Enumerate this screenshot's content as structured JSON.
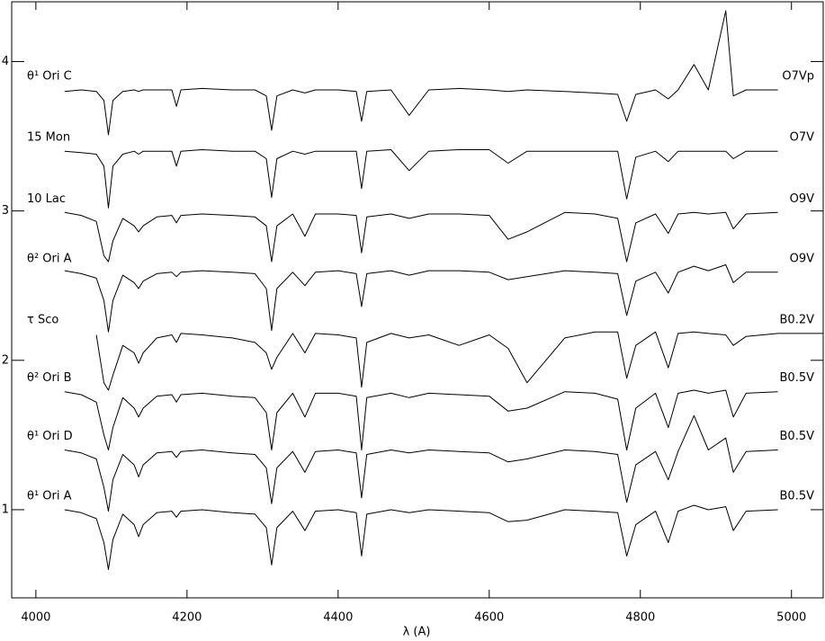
{
  "chart_data": {
    "type": "line",
    "x_label": "λ (A)",
    "xlim": [
      3968,
      5042
    ],
    "ylim": [
      0.41,
      4.4
    ],
    "xticks": [
      4000,
      4200,
      4400,
      4600,
      4800,
      5000
    ],
    "yticks": [
      1,
      2,
      3,
      4
    ],
    "color": "#000000",
    "x": [
      4038,
      4060,
      4080,
      4090,
      4096,
      4102,
      4115,
      4130,
      4136,
      4142,
      4160,
      4180,
      4186,
      4192,
      4220,
      4260,
      4290,
      4305,
      4312,
      4319,
      4340,
      4356,
      4370,
      4400,
      4424,
      4431,
      4438,
      4470,
      4494,
      4520,
      4560,
      4600,
      4625,
      4650,
      4700,
      4740,
      4770,
      4782,
      4794,
      4820,
      4837,
      4850,
      4871,
      4890,
      4913,
      4923,
      4940,
      4982,
      5042
    ],
    "series": [
      {
        "name": "θ¹ Ori C",
        "sptype": "O7Vp",
        "values": [
          3.8,
          3.81,
          3.8,
          3.74,
          3.51,
          3.74,
          3.8,
          3.81,
          3.8,
          3.81,
          3.81,
          3.81,
          3.7,
          3.81,
          3.82,
          3.81,
          3.81,
          3.77,
          3.54,
          3.77,
          3.81,
          3.79,
          3.81,
          3.81,
          3.8,
          3.6,
          3.8,
          3.81,
          3.64,
          3.81,
          3.82,
          3.81,
          3.8,
          3.81,
          3.8,
          3.79,
          3.78,
          3.6,
          3.78,
          3.81,
          3.75,
          3.81,
          3.98,
          3.81,
          4.34,
          3.77,
          3.81,
          3.81,
          null
        ]
      },
      {
        "name": "15 Mon",
        "sptype": "O7V",
        "values": [
          3.4,
          3.39,
          3.38,
          3.3,
          3.02,
          3.3,
          3.38,
          3.4,
          3.38,
          3.4,
          3.4,
          3.4,
          3.3,
          3.4,
          3.41,
          3.4,
          3.4,
          3.35,
          3.09,
          3.35,
          3.4,
          3.38,
          3.4,
          3.4,
          3.4,
          3.15,
          3.4,
          3.41,
          3.27,
          3.4,
          3.41,
          3.41,
          3.32,
          3.4,
          3.4,
          3.4,
          3.4,
          3.08,
          3.36,
          3.4,
          3.33,
          3.4,
          3.4,
          3.4,
          3.4,
          3.35,
          3.4,
          3.4,
          null
        ]
      },
      {
        "name": "10 Lac",
        "sptype": "O9V",
        "values": [
          2.99,
          2.97,
          2.93,
          2.7,
          2.66,
          2.8,
          2.95,
          2.9,
          2.86,
          2.9,
          2.96,
          2.97,
          2.92,
          2.97,
          2.98,
          2.97,
          2.96,
          2.9,
          2.66,
          2.9,
          2.98,
          2.83,
          2.98,
          2.98,
          2.97,
          2.72,
          2.96,
          2.98,
          2.95,
          2.98,
          2.98,
          2.97,
          2.81,
          2.86,
          2.99,
          2.98,
          2.95,
          2.66,
          2.92,
          2.98,
          2.85,
          2.98,
          2.99,
          2.98,
          2.99,
          2.88,
          2.98,
          2.99,
          null
        ]
      },
      {
        "name": "θ² Ori A",
        "sptype": "O9V",
        "values": [
          2.6,
          2.58,
          2.55,
          2.4,
          2.19,
          2.4,
          2.57,
          2.52,
          2.48,
          2.53,
          2.58,
          2.59,
          2.56,
          2.59,
          2.6,
          2.59,
          2.58,
          2.48,
          2.2,
          2.48,
          2.59,
          2.5,
          2.59,
          2.6,
          2.58,
          2.36,
          2.58,
          2.6,
          2.57,
          2.6,
          2.6,
          2.59,
          2.54,
          2.56,
          2.6,
          2.59,
          2.58,
          2.3,
          2.53,
          2.59,
          2.45,
          2.59,
          2.63,
          2.6,
          2.64,
          2.52,
          2.59,
          2.59,
          null
        ]
      },
      {
        "name": "τ Sco",
        "sptype": "B0.2V",
        "values": [
          null,
          null,
          2.17,
          1.85,
          1.8,
          1.9,
          2.1,
          2.05,
          1.98,
          2.05,
          2.15,
          2.17,
          2.12,
          2.18,
          2.17,
          2.15,
          2.12,
          2.05,
          1.94,
          2.02,
          2.18,
          2.05,
          2.18,
          2.17,
          2.15,
          1.82,
          2.12,
          2.18,
          2.15,
          2.17,
          2.1,
          2.17,
          2.08,
          1.85,
          2.15,
          2.19,
          2.19,
          1.88,
          2.1,
          2.19,
          1.95,
          2.18,
          2.19,
          2.18,
          2.17,
          2.1,
          2.16,
          2.18,
          2.18
        ]
      },
      {
        "name": "θ² Ori B",
        "sptype": "B0.5V",
        "values": [
          1.79,
          1.77,
          1.72,
          1.5,
          1.4,
          1.55,
          1.75,
          1.68,
          1.62,
          1.68,
          1.76,
          1.77,
          1.72,
          1.77,
          1.78,
          1.76,
          1.75,
          1.65,
          1.4,
          1.65,
          1.78,
          1.62,
          1.78,
          1.78,
          1.76,
          1.4,
          1.75,
          1.78,
          1.75,
          1.78,
          1.77,
          1.76,
          1.66,
          1.68,
          1.79,
          1.78,
          1.74,
          1.4,
          1.68,
          1.78,
          1.55,
          1.78,
          1.8,
          1.78,
          1.8,
          1.62,
          1.78,
          1.79,
          null
        ]
      },
      {
        "name": "θ¹ Ori D",
        "sptype": "B0.5V",
        "values": [
          1.4,
          1.38,
          1.34,
          1.15,
          0.99,
          1.2,
          1.37,
          1.3,
          1.22,
          1.3,
          1.38,
          1.39,
          1.35,
          1.39,
          1.4,
          1.38,
          1.37,
          1.28,
          1.04,
          1.28,
          1.39,
          1.25,
          1.39,
          1.4,
          1.38,
          1.08,
          1.37,
          1.4,
          1.38,
          1.4,
          1.39,
          1.38,
          1.32,
          1.34,
          1.4,
          1.39,
          1.37,
          1.05,
          1.3,
          1.39,
          1.2,
          1.39,
          1.63,
          1.4,
          1.48,
          1.25,
          1.39,
          1.4,
          null
        ]
      },
      {
        "name": "θ¹ Ori A",
        "sptype": "B0.5V",
        "values": [
          1.0,
          0.98,
          0.94,
          0.78,
          0.6,
          0.8,
          0.97,
          0.9,
          0.82,
          0.9,
          0.98,
          0.99,
          0.95,
          0.99,
          1.0,
          0.98,
          0.97,
          0.88,
          0.63,
          0.88,
          0.99,
          0.86,
          0.99,
          1.0,
          0.98,
          0.69,
          0.97,
          1.0,
          0.98,
          1.0,
          0.99,
          0.98,
          0.92,
          0.93,
          1.0,
          0.99,
          0.98,
          0.69,
          0.9,
          0.99,
          0.78,
          0.99,
          1.03,
          1.0,
          1.02,
          0.86,
          0.99,
          1.0,
          null
        ]
      }
    ]
  }
}
